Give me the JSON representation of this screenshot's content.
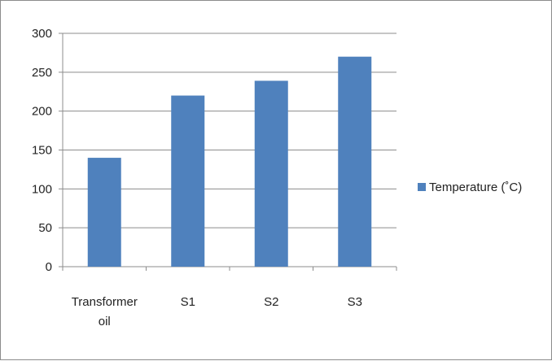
{
  "chart_data": {
    "type": "bar",
    "categories": [
      "Transformer oil",
      "S1",
      "S2",
      "S3"
    ],
    "category_lines": [
      [
        "Transformer",
        "oil"
      ],
      [
        "S1"
      ],
      [
        "S2"
      ],
      [
        "S3"
      ]
    ],
    "series": [
      {
        "name": "Temperature (˚C)",
        "values": [
          140,
          220,
          239,
          270
        ],
        "color": "#4f81bd"
      }
    ],
    "ylim": [
      0,
      300
    ],
    "yticks": [
      0,
      50,
      100,
      150,
      200,
      250,
      300
    ],
    "grid": true,
    "legend": "right",
    "title": "",
    "xlabel": "",
    "ylabel": ""
  }
}
